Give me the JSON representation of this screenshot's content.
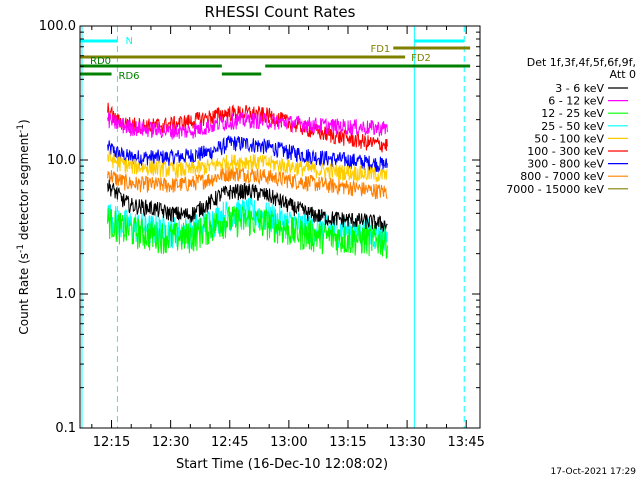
{
  "chart_data": {
    "type": "line",
    "title": "RHESSI Count Rates",
    "xlabel": "Start Time (16-Dec-10 12:08:02)",
    "ylabel_main": "Count Rate (s",
    "ylabel_sup1": "-1",
    "ylabel_mid": " detector segment",
    "ylabel_sup2": "-1",
    "ylabel_end": ")",
    "yscale": "log",
    "ylim": [
      0.1,
      100
    ],
    "xlim": [
      "12:07:00",
      "13:48:30"
    ],
    "x_ticks": [
      "12:15",
      "12:30",
      "12:45",
      "13:00",
      "13:15",
      "13:30",
      "13:45"
    ],
    "y_ticks": [
      "0.1",
      "1.0",
      "10.0",
      "100.0"
    ],
    "grid": false,
    "legend_header": [
      "Det 1f,3f,4f,5f,6f,9f,",
      "Att 0"
    ],
    "legend_position": "right",
    "timestamp": "17-Oct-2021 17:29",
    "series": [
      {
        "name": "3 - 6 keV",
        "color": "#000000",
        "times": [
          "12:14",
          "12:16",
          "12:18",
          "12:20",
          "12:25",
          "12:30",
          "12:35",
          "12:40",
          "12:43",
          "12:45",
          "12:50",
          "12:55",
          "13:00",
          "13:05",
          "13:10",
          "13:15",
          "13:20",
          "13:25"
        ],
        "values": [
          6.5,
          5.8,
          5.0,
          4.6,
          4.4,
          4.0,
          3.9,
          4.8,
          5.6,
          5.8,
          5.9,
          5.4,
          4.6,
          4.0,
          3.7,
          3.6,
          3.5,
          3.3
        ]
      },
      {
        "name": "6 - 12 keV",
        "color": "#ff00ff",
        "times": [
          "12:14",
          "12:16",
          "12:18",
          "12:20",
          "12:25",
          "12:30",
          "12:35",
          "12:40",
          "12:43",
          "12:45",
          "12:50",
          "12:55",
          "13:00",
          "13:05",
          "13:10",
          "13:15",
          "13:20",
          "13:25"
        ],
        "values": [
          20,
          19,
          18,
          17.5,
          17,
          16.5,
          16.5,
          18,
          19,
          19.5,
          20,
          19.5,
          19,
          18.5,
          18,
          17.8,
          17.5,
          17.3
        ]
      },
      {
        "name": "12 - 25 keV",
        "color": "#00ff00",
        "times": [
          "12:14",
          "12:16",
          "12:18",
          "12:20",
          "12:25",
          "12:30",
          "12:35",
          "12:40",
          "12:43",
          "12:45",
          "12:50",
          "12:55",
          "13:00",
          "13:05",
          "13:10",
          "13:15",
          "13:20",
          "13:25"
        ],
        "values": [
          3.6,
          3.3,
          3.1,
          3.0,
          2.8,
          2.7,
          2.7,
          3.2,
          3.5,
          3.6,
          3.6,
          3.4,
          3.0,
          2.8,
          2.7,
          2.6,
          2.6,
          2.5
        ]
      },
      {
        "name": "25 - 50 keV",
        "color": "#00ffff",
        "times": [
          "12:14",
          "12:16",
          "12:18",
          "12:20",
          "12:25",
          "12:30",
          "12:35",
          "12:40",
          "12:43",
          "12:45",
          "12:50",
          "12:55",
          "13:00",
          "13:05",
          "13:10",
          "13:15",
          "13:20",
          "13:25"
        ],
        "values": [
          3.9,
          3.6,
          3.4,
          3.3,
          3.1,
          3.0,
          3.0,
          3.5,
          3.9,
          4.0,
          4.1,
          3.8,
          3.4,
          3.2,
          3.1,
          3.0,
          2.9,
          2.8
        ]
      },
      {
        "name": "50 - 100 keV",
        "color": "#ffcc00",
        "times": [
          "12:14",
          "12:16",
          "12:18",
          "12:20",
          "12:25",
          "12:30",
          "12:35",
          "12:40",
          "12:43",
          "12:45",
          "12:50",
          "12:55",
          "13:00",
          "13:05",
          "13:10",
          "13:15",
          "13:20",
          "13:25"
        ],
        "values": [
          10.5,
          9.8,
          9.3,
          9.0,
          8.8,
          8.5,
          8.5,
          9.0,
          9.5,
          9.7,
          9.8,
          9.5,
          9.0,
          8.6,
          8.3,
          8.1,
          7.9,
          7.7
        ]
      },
      {
        "name": "100 - 300 keV",
        "color": "#ff0000",
        "times": [
          "12:14",
          "12:16",
          "12:18",
          "12:20",
          "12:25",
          "12:30",
          "12:35",
          "12:40",
          "12:43",
          "12:45",
          "12:50",
          "12:55",
          "13:00",
          "13:05",
          "13:10",
          "13:15",
          "13:20",
          "13:25"
        ],
        "values": [
          24,
          20,
          19,
          18.5,
          18,
          18.5,
          19.5,
          21,
          22,
          22.5,
          22.5,
          21.5,
          19,
          17,
          15.5,
          14.5,
          13.5,
          13
        ]
      },
      {
        "name": "300 - 800 keV",
        "color": "#0000ff",
        "times": [
          "12:14",
          "12:16",
          "12:18",
          "12:20",
          "12:25",
          "12:30",
          "12:35",
          "12:40",
          "12:43",
          "12:45",
          "12:50",
          "12:55",
          "13:00",
          "13:05",
          "13:10",
          "13:15",
          "13:20",
          "13:25"
        ],
        "values": [
          12.5,
          11.5,
          10.8,
          10.5,
          10.5,
          10.5,
          10.8,
          11.5,
          12.5,
          13.5,
          13.2,
          12.5,
          11.5,
          10.8,
          10.3,
          10.0,
          9.6,
          9.2
        ]
      },
      {
        "name": "800 - 7000 keV",
        "color": "#ff8000",
        "times": [
          "12:14",
          "12:16",
          "12:18",
          "12:20",
          "12:25",
          "12:30",
          "12:35",
          "12:40",
          "12:43",
          "12:45",
          "12:50",
          "12:55",
          "13:00",
          "13:05",
          "13:10",
          "13:15",
          "13:20",
          "13:25"
        ],
        "values": [
          8.0,
          7.3,
          6.9,
          6.7,
          6.6,
          6.5,
          6.7,
          7.2,
          7.8,
          8.0,
          7.9,
          7.5,
          7.1,
          6.8,
          6.5,
          6.3,
          6.0,
          5.8
        ]
      },
      {
        "name": "7000 - 15000 keV",
        "color": "#808000",
        "times": [],
        "values": []
      }
    ],
    "bars": [
      {
        "label": "N",
        "color": "#00ffff",
        "start": "12:07:00",
        "end": "12:16:30",
        "row": 0
      },
      {
        "label": "",
        "color": "#00ffff",
        "start": "13:31:50",
        "end": "13:44:30",
        "row": 0
      },
      {
        "label": "FD1",
        "color": "#808000",
        "start": "13:26:30",
        "end": "13:46:00",
        "row": 1
      },
      {
        "label": "FD2",
        "color": "#808000",
        "start": "12:07:00",
        "end": "13:29:30",
        "row": 2
      },
      {
        "label": "RD0",
        "color": "#008000",
        "start": "12:07:00",
        "end": "12:43:00",
        "row": 3
      },
      {
        "label": "",
        "color": "#008000",
        "start": "12:54:00",
        "end": "13:46:00",
        "row": 3
      },
      {
        "label": "RD6",
        "color": "#008000",
        "start": "12:07:00",
        "end": "12:15:00",
        "row": 4
      },
      {
        "label": "",
        "color": "#008000",
        "start": "12:43:00",
        "end": "12:53:00",
        "row": 4
      }
    ],
    "vlines": [
      {
        "time": "12:07:30",
        "style": "solid",
        "color": "#00ffff"
      },
      {
        "time": "12:16:30",
        "style": "dashed",
        "color": "#00ffff"
      },
      {
        "time": "13:31:50",
        "style": "solid",
        "color": "#00ffff"
      },
      {
        "time": "13:44:30",
        "style": "dashed",
        "color": "#00ffff"
      }
    ]
  }
}
